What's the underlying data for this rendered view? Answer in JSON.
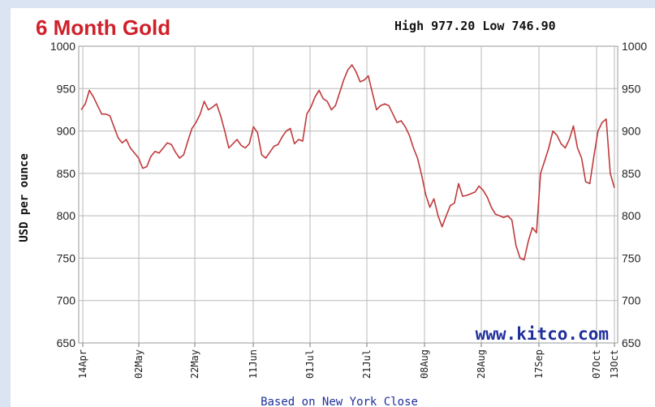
{
  "chart_data": {
    "type": "line",
    "title": "6 Month Gold",
    "high_low": "High 977.20 Low 746.90",
    "ylabel": "USD per ounce",
    "watermark": "www.kitco.com",
    "footnote": "Based on New York Close",
    "ylim": [
      650,
      1000
    ],
    "y_ticks": [
      650,
      700,
      750,
      800,
      850,
      900,
      950,
      1000
    ],
    "grid": true,
    "line_color": "#c0393b",
    "x_ticks": [
      "14Apr",
      "02May",
      "22May",
      "11Jun",
      "01Jul",
      "21Jul",
      "08Aug",
      "28Aug",
      "17Sep",
      "07Oct",
      "13Oct"
    ],
    "series": [
      {
        "values": [
          925,
          932,
          948,
          940,
          930,
          920,
          920,
          918,
          905,
          892,
          886,
          890,
          880,
          874,
          868,
          856,
          858,
          870,
          876,
          874,
          880,
          886,
          884,
          875,
          868,
          872,
          888,
          903,
          910,
          920,
          935,
          925,
          928,
          932,
          918,
          900,
          880,
          885,
          890,
          883,
          880,
          885,
          905,
          898,
          872,
          868,
          875,
          882,
          884,
          893,
          900,
          903,
          885,
          890,
          888,
          920,
          928,
          940,
          948,
          938,
          935,
          925,
          930,
          945,
          960,
          972,
          978,
          970,
          958,
          960,
          965,
          945,
          925,
          930,
          932,
          930,
          920,
          910,
          912,
          905,
          895,
          880,
          868,
          848,
          825,
          810,
          820,
          800,
          787,
          800,
          812,
          815,
          838,
          823,
          824,
          826,
          828,
          835,
          830,
          822,
          810,
          802,
          800,
          798,
          800,
          795,
          765,
          750,
          748,
          770,
          786,
          780,
          850,
          865,
          880,
          900,
          895,
          885,
          880,
          890,
          906,
          880,
          868,
          840,
          838,
          870,
          900,
          910,
          914,
          850,
          833
        ]
      }
    ]
  }
}
